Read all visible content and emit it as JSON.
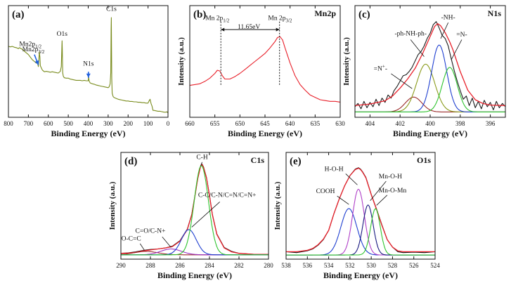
{
  "panels": [
    {
      "id": "a",
      "type": "line",
      "label": "(a)",
      "title": "",
      "xlabel": "Binding Energy (eV)",
      "ylabel": "",
      "xlim": [
        800,
        0
      ],
      "xticks": [
        800,
        700,
        600,
        500,
        400,
        300,
        200,
        100,
        0
      ],
      "yticks": [],
      "curve_color": "#7a8c1e",
      "series": [
        {
          "name": "survey",
          "color": "#7a8c1e",
          "type": "line",
          "x": [
            800,
            790,
            780,
            770,
            760,
            750,
            745,
            740,
            730,
            720,
            710,
            700,
            690,
            680,
            670,
            660,
            655,
            650,
            648,
            645,
            642,
            640,
            630,
            620,
            610,
            600,
            590,
            580,
            570,
            560,
            550,
            540,
            535,
            533,
            531,
            530,
            528,
            525,
            520,
            510,
            500,
            490,
            480,
            470,
            460,
            450,
            440,
            430,
            420,
            410,
            400,
            399,
            398,
            397,
            395,
            390,
            380,
            370,
            360,
            350,
            340,
            330,
            320,
            310,
            300,
            295,
            290,
            287,
            285,
            284,
            283,
            282,
            280,
            275,
            270,
            260,
            250,
            240,
            230,
            220,
            210,
            200,
            190,
            180,
            170,
            160,
            150,
            140,
            130,
            120,
            110,
            100,
            95,
            90,
            85,
            80,
            75,
            70,
            60,
            50,
            40,
            30,
            20,
            10,
            5,
            0
          ],
          "y": [
            8.25,
            8.2,
            8.25,
            8.15,
            8.1,
            8.0,
            8.1,
            8.05,
            7.9,
            7.7,
            7.5,
            7.3,
            7.0,
            6.7,
            6.5,
            6.3,
            6.4,
            5.9,
            6.5,
            7.6,
            7.0,
            6.0,
            5.5,
            5.3,
            5.35,
            5.3,
            5.25,
            5.3,
            5.25,
            5.2,
            5.15,
            5.35,
            5.9,
            7.5,
            8.9,
            8.0,
            5.2,
            4.8,
            4.6,
            4.55,
            4.55,
            4.45,
            4.4,
            4.35,
            4.3,
            4.3,
            4.3,
            4.25,
            4.3,
            4.25,
            4.25,
            4.5,
            4.75,
            4.45,
            4.2,
            4.0,
            3.9,
            3.85,
            3.75,
            3.7,
            3.65,
            3.6,
            3.55,
            3.5,
            3.45,
            3.55,
            3.9,
            5.2,
            10.3,
            11.6,
            8.0,
            4.5,
            2.8,
            2.4,
            2.3,
            2.2,
            2.1,
            2.05,
            2.0,
            1.95,
            1.9,
            1.9,
            1.85,
            1.85,
            1.8,
            1.8,
            1.75,
            1.75,
            1.7,
            1.7,
            1.65,
            1.65,
            1.9,
            2.1,
            1.6,
            1.3,
            0.8,
            0.8,
            0.75,
            0.7,
            0.7,
            0.65,
            0.6,
            0.6,
            0.65,
            0.5
          ]
        }
      ],
      "annotations": [
        {
          "text": "C1s",
          "x": 284,
          "y": 12.4
        },
        {
          "text": "O1s",
          "x": 531,
          "y": 9.5
        },
        {
          "text": "N1s",
          "x": 399,
          "y": 6.0
        },
        {
          "text": "Mn2p",
          "sub": "1/2",
          "x": 690,
          "y": 8.3
        },
        {
          "text": "Mn2p",
          "sub": "3/2",
          "x": 675,
          "y": 7.7
        }
      ],
      "arrows": [
        {
          "from": [
            670,
            7.3
          ],
          "to": [
            650,
            6.1
          ]
        },
        {
          "from": [
            399,
            5.3
          ],
          "to": [
            399,
            4.6
          ]
        }
      ]
    },
    {
      "id": "b",
      "type": "line",
      "label": "(b)",
      "title": "Mn2p",
      "xlabel": "Binding Energy (eV)",
      "ylabel": "Intensity (a.u.)",
      "xlim": [
        660,
        630
      ],
      "xticks": [
        660,
        655,
        650,
        645,
        640,
        635,
        630
      ],
      "yticks": [],
      "series": [
        {
          "name": "Mn2p",
          "color": "#e8202a",
          "type": "line",
          "x": [
            660,
            659,
            658,
            657,
            656,
            655,
            654.5,
            654,
            653.5,
            653,
            652,
            651,
            650,
            649,
            648,
            647,
            646,
            645,
            644,
            643,
            642.5,
            642,
            641.5,
            641,
            640,
            639,
            638,
            637,
            636,
            635,
            634,
            633,
            632,
            631,
            630
          ],
          "y": [
            3.0,
            3.05,
            3.1,
            3.25,
            3.45,
            3.75,
            3.95,
            3.9,
            3.6,
            3.4,
            3.4,
            3.55,
            3.75,
            4.0,
            4.25,
            4.5,
            4.75,
            5.0,
            5.35,
            5.75,
            6.0,
            6.05,
            5.85,
            5.35,
            4.4,
            3.6,
            3.05,
            2.7,
            2.4,
            2.25,
            2.1,
            2.05,
            2.0,
            2.0,
            1.95
          ]
        }
      ],
      "annotations": [
        {
          "text": "Mn 2p",
          "sub": "1/2",
          "x": 654.5,
          "y": 7.1
        },
        {
          "text": "Mn 2p",
          "sub": "3/2",
          "x": 642,
          "y": 7.1
        },
        {
          "text": "11.65eV",
          "x": 648.2,
          "y": 6.55
        }
      ],
      "vlines": [
        653.8,
        642.1
      ],
      "span": [
        653.8,
        642.1
      ]
    },
    {
      "id": "c",
      "type": "line",
      "label": "(c)",
      "title": "N1s",
      "xlabel": "Binding Energy (eV)",
      "ylabel": "Intensity (a.u.)",
      "xlim": [
        405,
        395
      ],
      "xticks": [
        404,
        402,
        400,
        398,
        396
      ],
      "yticks": [],
      "series": [
        {
          "name": "raw",
          "color": "#1a1a1a",
          "type": "line",
          "x": [
            405,
            404.8,
            404.6,
            404.4,
            404.2,
            404,
            403.8,
            403.6,
            403.4,
            403.2,
            403,
            402.8,
            402.6,
            402.4,
            402.2,
            402,
            401.8,
            401.6,
            401.4,
            401.2,
            401,
            400.8,
            400.6,
            400.4,
            400.2,
            400,
            399.8,
            399.6,
            399.4,
            399.2,
            399,
            398.8,
            398.6,
            398.4,
            398.2,
            398,
            397.8,
            397.6,
            397.4,
            397.2,
            397,
            396.8,
            396.6,
            396.4,
            396.2,
            396,
            395.8,
            395.6,
            395.4,
            395.2,
            395
          ],
          "y": [
            0.5,
            0.8,
            0.3,
            1.0,
            0.4,
            0.9,
            0.5,
            1.2,
            0.6,
            1.3,
            0.9,
            1.6,
            1.3,
            2.0,
            2.4,
            2.9,
            3.4,
            3.5,
            3.8,
            4.2,
            4.8,
            5.4,
            5.7,
            6.2,
            6.9,
            7.4,
            8.2,
            8.5,
            7.9,
            7.2,
            6.9,
            6.2,
            5.0,
            3.9,
            2.9,
            2.0,
            1.2,
            1.5,
            0.6,
            1.3,
            0.4,
            1.0,
            0.3,
            1.1,
            0.5,
            0.9,
            0.2,
            1.0,
            0.4,
            0.8,
            0.5
          ]
        },
        {
          "name": "fit",
          "color": "#e8202a",
          "type": "fit",
          "x": [
            405,
            404,
            403,
            402.5,
            402,
            401.5,
            401,
            400.5,
            400,
            399.7,
            399.5,
            399.3,
            399,
            398.7,
            398.5,
            398,
            397.5,
            397,
            396.5,
            396,
            395
          ],
          "y": [
            0.6,
            0.75,
            1.05,
            1.5,
            2.25,
            3.1,
            4.1,
            5.5,
            7.1,
            8.05,
            8.3,
            8.1,
            7.45,
            6.6,
            5.9,
            3.8,
            2.05,
            1.15,
            0.8,
            0.65,
            0.6
          ]
        },
        {
          "name": "=N+-",
          "color": "#9a2a2a",
          "type": "peak",
          "center": 401.1,
          "amp": 1.4,
          "sigma": 0.55
        },
        {
          "name": "-ph-NH-ph-",
          "color": "#8a9a1a",
          "type": "peak",
          "center": 400.3,
          "amp": 4.5,
          "sigma": 0.6
        },
        {
          "name": "-NH-",
          "color": "#1f3fd0",
          "type": "peak",
          "center": 399.4,
          "amp": 6.3,
          "sigma": 0.5
        },
        {
          "name": "=N-",
          "color": "#2ec42e",
          "type": "peak",
          "center": 398.7,
          "amp": 4.2,
          "sigma": 0.5
        }
      ],
      "annotations": [
        {
          "text": "-ph-NH-ph-",
          "x": 401.3,
          "y": 7.2
        },
        {
          "text": "-NH-",
          "x": 398.8,
          "y": 8.7
        },
        {
          "text": "=N-",
          "x": 397.9,
          "y": 7.1
        },
        {
          "text": "=N",
          "sup": "+",
          "tail": "-",
          "x": 403.3,
          "y": 3.9
        }
      ]
    },
    {
      "id": "d",
      "type": "line",
      "label": "(d)",
      "title": "C1s",
      "xlabel": "Binding Energy (eV)",
      "ylabel": "Intensity (a.u.)",
      "xlim": [
        290,
        280
      ],
      "xticks": [
        290,
        288,
        286,
        284,
        282,
        280
      ],
      "yticks": [],
      "series": [
        {
          "name": "raw",
          "color": "#1a1a1a",
          "type": "line",
          "x": [
            290,
            289.5,
            289,
            288.5,
            288,
            287.5,
            287,
            286.5,
            286,
            285.5,
            285.2,
            285,
            284.8,
            284.6,
            284.5,
            284.4,
            284.2,
            284,
            283.8,
            283.5,
            283,
            282.5,
            282,
            281.5,
            281,
            280.5,
            280
          ],
          "y": [
            0.6,
            0.65,
            0.75,
            0.9,
            1.0,
            1.05,
            1.15,
            1.35,
            1.9,
            3.1,
            4.6,
            6.4,
            8.3,
            9.6,
            9.8,
            9.5,
            8.4,
            6.6,
            4.6,
            2.6,
            1.2,
            0.8,
            0.6,
            0.55,
            0.5,
            0.5,
            0.5
          ]
        },
        {
          "name": "fit",
          "color": "#e8202a",
          "type": "fit",
          "x": [
            290,
            289.5,
            289,
            288.5,
            288,
            287.5,
            287,
            286.5,
            286,
            285.5,
            285.2,
            285,
            284.8,
            284.6,
            284.5,
            284.4,
            284.2,
            284,
            283.8,
            283.5,
            283,
            282.5,
            282,
            281.5,
            281,
            280.5,
            280
          ],
          "y": [
            0.6,
            0.62,
            0.7,
            0.85,
            0.95,
            1.05,
            1.15,
            1.3,
            1.85,
            3.05,
            4.55,
            6.35,
            8.25,
            9.55,
            9.75,
            9.45,
            8.35,
            6.55,
            4.55,
            2.55,
            1.15,
            0.75,
            0.6,
            0.55,
            0.5,
            0.5,
            0.5
          ]
        },
        {
          "name": "O-C=C",
          "color": "#9a2a2a",
          "type": "peak",
          "center": 288.3,
          "amp": 0.35,
          "sigma": 0.8
        },
        {
          "name": "C=O/C-N+",
          "color": "#9a30c0",
          "type": "peak",
          "center": 286.6,
          "amp": 0.6,
          "sigma": 0.7
        },
        {
          "name": "C-C/C-N/C=N/C=N+",
          "color": "#1f3fd0",
          "type": "peak",
          "center": 285.4,
          "amp": 2.6,
          "sigma": 0.5
        },
        {
          "name": "C-H",
          "color": "#2ec42e",
          "type": "peak",
          "center": 284.55,
          "amp": 9.2,
          "sigma": 0.48
        }
      ],
      "annotations": [
        {
          "text": "C-H",
          "x": 284.5,
          "y": 10.3
        },
        {
          "text": "C-C/C-N/C=N/C=N+",
          "x": 282.8,
          "y": 6.4
        },
        {
          "text": "C=O/C-N+",
          "x": 288.0,
          "y": 2.7
        },
        {
          "text": "O-C=C",
          "x": 289.3,
          "y": 1.9
        }
      ]
    },
    {
      "id": "e",
      "type": "line",
      "label": "(e)",
      "title": "O1s",
      "xlabel": "Binding Energy (eV)",
      "ylabel": "Intensity (a.u.)",
      "xlim": [
        538,
        524
      ],
      "xticks": [
        538,
        536,
        534,
        532,
        530,
        528,
        526,
        524
      ],
      "yticks": [],
      "series": [
        {
          "name": "raw",
          "color": "#1a1a1a",
          "type": "line",
          "x": [
            538,
            537,
            536,
            535.5,
            535,
            534.5,
            534,
            533.5,
            533,
            532.5,
            532,
            531.5,
            531.2,
            531,
            530.8,
            530.5,
            530,
            529.5,
            529,
            528.5,
            528,
            527.5,
            527,
            526,
            525,
            524
          ],
          "y": [
            0.3,
            0.2,
            0.4,
            0.6,
            1.0,
            1.6,
            2.6,
            4.4,
            6.0,
            7.4,
            8.5,
            9.2,
            9.35,
            9.2,
            8.9,
            8.3,
            6.5,
            4.9,
            3.2,
            1.6,
            0.8,
            0.3,
            0.2,
            0.25,
            0.2,
            0.3
          ]
        },
        {
          "name": "fit",
          "color": "#e8202a",
          "type": "fit",
          "x": [
            538,
            537,
            536,
            535.5,
            535,
            534.5,
            534,
            533.5,
            533,
            532.5,
            532,
            531.5,
            531.2,
            531,
            530.8,
            530.5,
            530,
            529.5,
            529,
            528.5,
            528,
            527.5,
            527,
            526,
            525,
            524
          ],
          "y": [
            0.3,
            0.3,
            0.45,
            0.65,
            1.05,
            1.65,
            2.6,
            4.4,
            6.0,
            7.4,
            8.5,
            9.15,
            9.3,
            9.15,
            8.85,
            8.25,
            6.45,
            4.85,
            3.15,
            1.6,
            0.8,
            0.4,
            0.3,
            0.3,
            0.3,
            0.3
          ]
        },
        {
          "name": "COOH",
          "color": "#1f3fd0",
          "type": "peak",
          "center": 532.1,
          "amp": 5.0,
          "sigma": 0.75
        },
        {
          "name": "H-O-H",
          "color": "#b040c8",
          "type": "peak",
          "center": 531.2,
          "amp": 7.1,
          "sigma": 0.55
        },
        {
          "name": "Mn-O-H",
          "color": "#1a1a80",
          "type": "peak",
          "center": 530.3,
          "amp": 5.4,
          "sigma": 0.48
        },
        {
          "name": "Mn-O-Mn",
          "color": "#2ec42e",
          "type": "peak",
          "center": 529.6,
          "amp": 5.0,
          "sigma": 0.45
        }
      ],
      "annotations": [
        {
          "text": "H-O-H",
          "x": 533.5,
          "y": 9.0
        },
        {
          "text": "COOH",
          "x": 534.3,
          "y": 6.6
        },
        {
          "text": "Mn-O-H",
          "x": 528.2,
          "y": 8.2
        },
        {
          "text": "Mn-O-Mn",
          "x": 528.0,
          "y": 6.7
        }
      ]
    }
  ]
}
